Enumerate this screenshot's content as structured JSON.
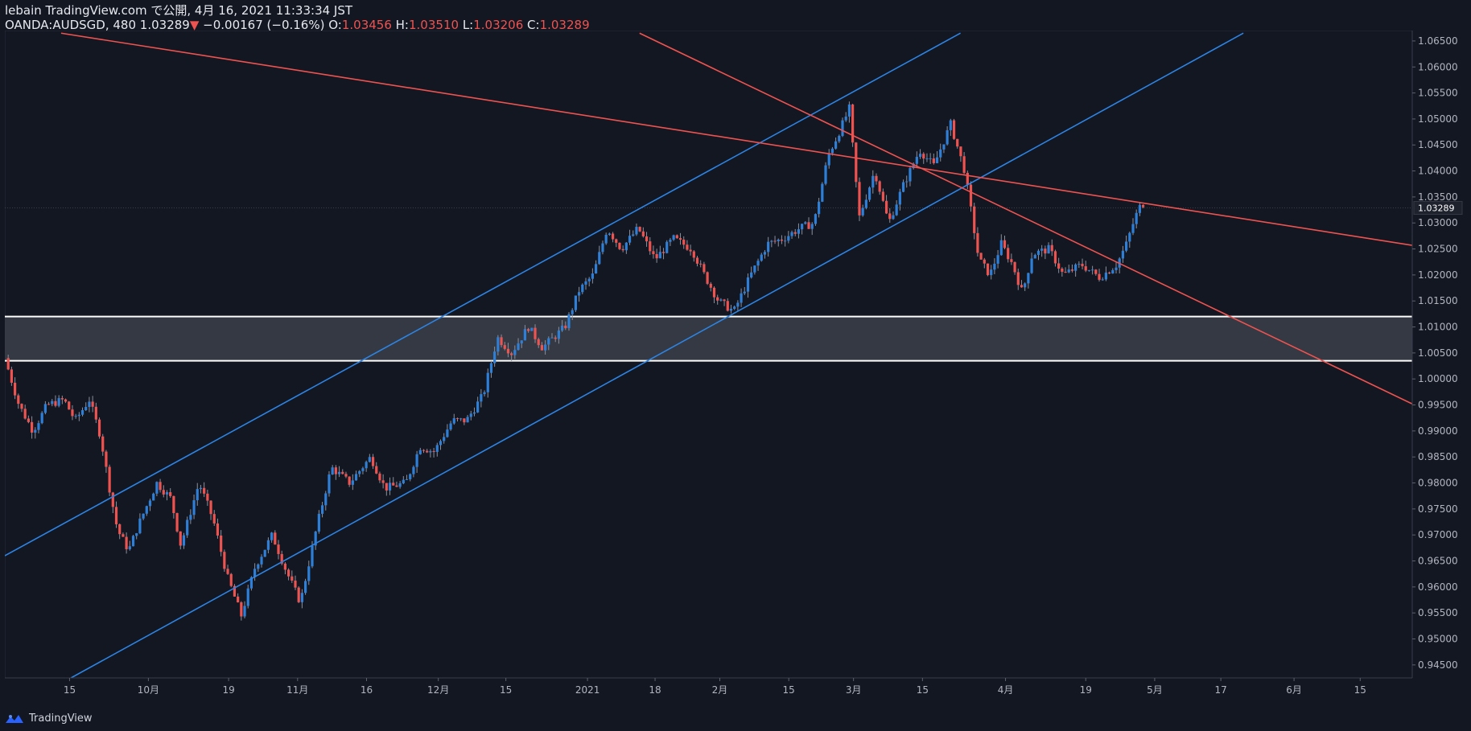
{
  "header": {
    "line1": "lebain TradingView.com で公開, 4月 16, 2021 11:33:34 JST",
    "symbol": "OANDA:AUDSGD, 480",
    "last": "1.03289",
    "arrow": "▼",
    "change": "−0.00167 (−0.16%)",
    "o_label": "O:",
    "o_value": "1.03456",
    "h_label": "H:",
    "h_value": "1.03510",
    "l_label": "L:",
    "l_value": "1.03206",
    "c_label": "C:",
    "c_value": "1.03289"
  },
  "footer": {
    "brand": "TradingView"
  },
  "colors": {
    "up": "#2d7fd8",
    "down": "#ef5350",
    "channel": "#2d84e4",
    "trend": "#ef5350",
    "zone": "#3a3d47",
    "bg": "#131722"
  },
  "chart_data": {
    "type": "candlestick",
    "symbol": "OANDA:AUDSGD",
    "interval": "480",
    "ylim": [
      0.9425,
      1.067
    ],
    "y_ticks": [
      "1.06500",
      "1.06000",
      "1.05500",
      "1.05000",
      "1.04500",
      "1.04000",
      "1.03500",
      "1.03000",
      "1.02500",
      "1.02000",
      "1.01500",
      "1.01000",
      "1.00500",
      "1.00000",
      "0.99500",
      "0.99000",
      "0.98500",
      "0.98000",
      "0.97500",
      "0.97000",
      "0.96500",
      "0.96000",
      "0.95500",
      "0.95000",
      "0.94500"
    ],
    "current_price": "1.03289",
    "x_ticks": [
      {
        "label": "15",
        "t": 0.046
      },
      {
        "label": "10月",
        "t": 0.102
      },
      {
        "label": "19",
        "t": 0.159
      },
      {
        "label": "11月",
        "t": 0.208
      },
      {
        "label": "16",
        "t": 0.257
      },
      {
        "label": "12月",
        "t": 0.308
      },
      {
        "label": "15",
        "t": 0.356
      },
      {
        "label": "2021",
        "t": 0.414
      },
      {
        "label": "18",
        "t": 0.462
      },
      {
        "label": "2月",
        "t": 0.508
      },
      {
        "label": "15",
        "t": 0.557
      },
      {
        "label": "3月",
        "t": 0.603
      },
      {
        "label": "15",
        "t": 0.652
      },
      {
        "label": "4月",
        "t": 0.711
      },
      {
        "label": "19",
        "t": 0.768
      },
      {
        "label": "5月",
        "t": 0.817
      },
      {
        "label": "17",
        "t": 0.864
      },
      {
        "label": "6月",
        "t": 0.916
      },
      {
        "label": "15",
        "t": 0.963
      }
    ],
    "price_path": [
      [
        0.0,
        1.004
      ],
      [
        0.01,
        0.995
      ],
      [
        0.02,
        0.99
      ],
      [
        0.03,
        0.995
      ],
      [
        0.042,
        0.996
      ],
      [
        0.05,
        0.992
      ],
      [
        0.06,
        0.996
      ],
      [
        0.068,
        0.989
      ],
      [
        0.075,
        0.978
      ],
      [
        0.08,
        0.971
      ],
      [
        0.088,
        0.967
      ],
      [
        0.095,
        0.972
      ],
      [
        0.108,
        0.98
      ],
      [
        0.118,
        0.977
      ],
      [
        0.125,
        0.968
      ],
      [
        0.138,
        0.98
      ],
      [
        0.148,
        0.973
      ],
      [
        0.158,
        0.962
      ],
      [
        0.168,
        0.9545
      ],
      [
        0.178,
        0.964
      ],
      [
        0.19,
        0.97
      ],
      [
        0.2,
        0.963
      ],
      [
        0.21,
        0.957
      ],
      [
        0.222,
        0.972
      ],
      [
        0.232,
        0.983
      ],
      [
        0.245,
        0.98
      ],
      [
        0.26,
        0.985
      ],
      [
        0.27,
        0.979
      ],
      [
        0.285,
        0.98
      ],
      [
        0.295,
        0.987
      ],
      [
        0.305,
        0.986
      ],
      [
        0.318,
        0.992
      ],
      [
        0.328,
        0.992
      ],
      [
        0.34,
        0.997
      ],
      [
        0.35,
        1.008
      ],
      [
        0.36,
        1.005
      ],
      [
        0.372,
        1.01
      ],
      [
        0.382,
        1.006
      ],
      [
        0.398,
        1.01
      ],
      [
        0.408,
        1.017
      ],
      [
        0.418,
        1.02
      ],
      [
        0.428,
        1.029
      ],
      [
        0.438,
        1.025
      ],
      [
        0.45,
        1.029
      ],
      [
        0.462,
        1.023
      ],
      [
        0.475,
        1.027
      ],
      [
        0.488,
        1.025
      ],
      [
        0.497,
        1.02
      ],
      [
        0.507,
        1.015
      ],
      [
        0.518,
        1.013
      ],
      [
        0.53,
        1.02
      ],
      [
        0.542,
        1.026
      ],
      [
        0.553,
        1.027
      ],
      [
        0.565,
        1.029
      ],
      [
        0.575,
        1.03
      ],
      [
        0.585,
        1.043
      ],
      [
        0.592,
        1.047
      ],
      [
        0.6,
        1.052
      ],
      [
        0.607,
        1.031
      ],
      [
        0.618,
        1.04
      ],
      [
        0.628,
        1.03
      ],
      [
        0.638,
        1.037
      ],
      [
        0.65,
        1.044
      ],
      [
        0.66,
        1.041
      ],
      [
        0.672,
        1.049
      ],
      [
        0.682,
        1.04
      ],
      [
        0.692,
        1.023
      ],
      [
        0.7,
        1.02
      ],
      [
        0.708,
        1.026
      ],
      [
        0.716,
        1.022
      ],
      [
        0.723,
        1.0165
      ],
      [
        0.73,
        1.024
      ],
      [
        0.742,
        1.025
      ],
      [
        0.752,
        1.02
      ],
      [
        0.765,
        1.022
      ],
      [
        0.778,
        1.0195
      ],
      [
        0.79,
        1.022
      ],
      [
        0.797,
        1.026
      ],
      [
        0.803,
        1.031
      ],
      [
        0.808,
        1.034
      ],
      [
        0.811,
        1.0329
      ]
    ],
    "trend_lines": [
      {
        "name": "upper-channel",
        "color": "blue",
        "p1": [
          0.0,
          0.966
        ],
        "p2": [
          0.679,
          1.0665
        ]
      },
      {
        "name": "lower-channel",
        "color": "blue",
        "p1": [
          0.047,
          0.9425
        ],
        "p2": [
          0.88,
          1.0665
        ]
      },
      {
        "name": "upper-downtrend",
        "color": "red",
        "p1": [
          0.04,
          1.0665
        ],
        "p2": [
          1.0,
          1.0257
        ]
      },
      {
        "name": "lower-downtrend",
        "color": "red",
        "p1": [
          0.451,
          1.0665
        ],
        "p2": [
          1.0,
          0.9952
        ]
      }
    ],
    "zone": {
      "top": 1.012,
      "bottom": 1.0035
    },
    "grid": false,
    "legend": "none"
  }
}
